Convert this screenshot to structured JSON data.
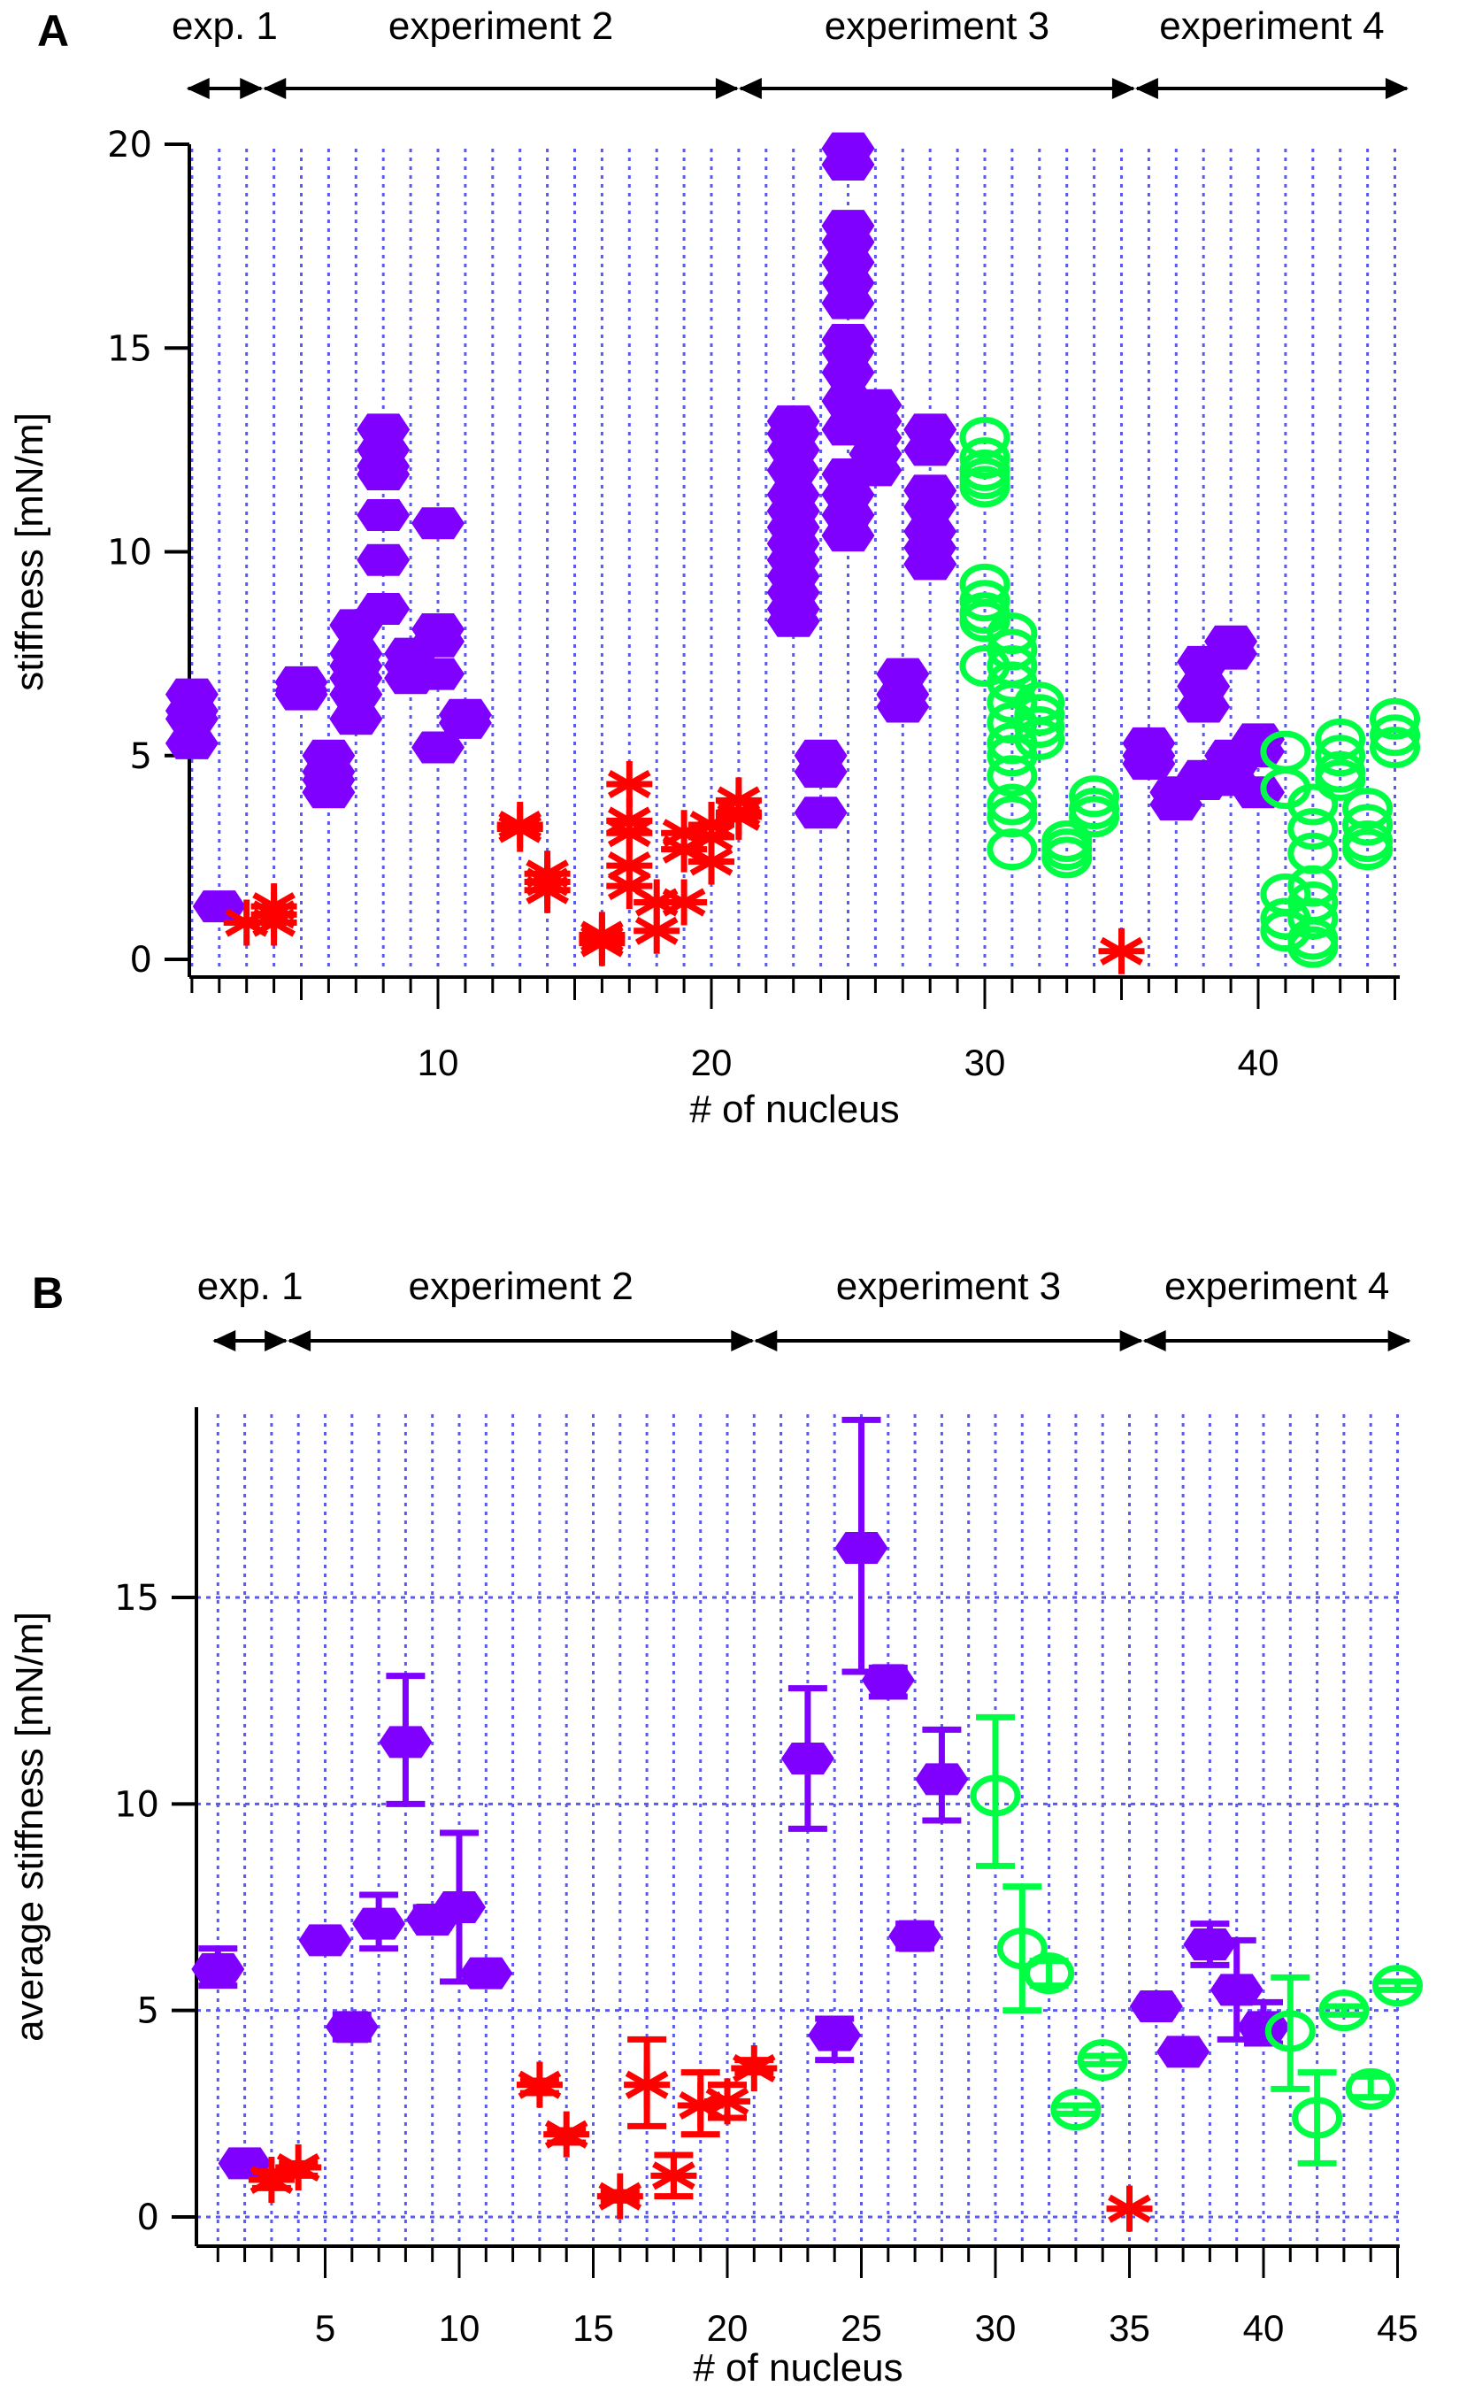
{
  "figure": {
    "panels": [
      "A",
      "B"
    ]
  },
  "colors": {
    "group_purple": "#7f00ff",
    "group_red": "#ff0000",
    "group_green": "#00ff44",
    "grid": "#5a5aee",
    "axis": "#000000"
  },
  "experiments": [
    {
      "label": "exp. 1",
      "from": 0.8,
      "to": 3.6
    },
    {
      "label": "experiment 2",
      "from": 3.6,
      "to": 21.0
    },
    {
      "label": "experiment 3",
      "from": 21.0,
      "to": 35.5
    },
    {
      "label": "experiment 4",
      "from": 35.5,
      "to": 45.5
    }
  ],
  "chart_data": [
    {
      "panel": "A",
      "type": "scatter",
      "title": "",
      "xlabel": "# of nucleus",
      "ylabel": "stiffness [mN/m]",
      "xlim": [
        0,
        45
      ],
      "ylim": [
        0,
        20
      ],
      "xticks": [
        10,
        20,
        30,
        40
      ],
      "yticks": [
        0,
        5,
        10,
        15,
        20
      ],
      "grid": "vertical dotted at each integer",
      "series": [
        {
          "name": "purple diamonds",
          "marker": "diamond",
          "color": "#7f00ff",
          "points": [
            [
              1,
              6.5
            ],
            [
              1,
              6.1
            ],
            [
              1,
              5.9
            ],
            [
              1,
              5.3
            ],
            [
              2,
              1.3
            ],
            [
              5,
              6.8
            ],
            [
              5,
              6.6
            ],
            [
              5,
              6.5
            ],
            [
              6,
              5.0
            ],
            [
              6,
              4.6
            ],
            [
              6,
              4.4
            ],
            [
              6,
              4.1
            ],
            [
              7,
              8.2
            ],
            [
              7,
              7.5
            ],
            [
              7,
              7.2
            ],
            [
              7,
              6.9
            ],
            [
              7,
              6.5
            ],
            [
              7,
              5.9
            ],
            [
              8,
              13.0
            ],
            [
              8,
              12.5
            ],
            [
              8,
              12.1
            ],
            [
              8,
              11.9
            ],
            [
              8,
              10.9
            ],
            [
              8,
              9.8
            ],
            [
              8,
              8.6
            ],
            [
              9,
              7.5
            ],
            [
              9,
              7.2
            ],
            [
              9,
              6.9
            ],
            [
              10,
              10.7
            ],
            [
              10,
              8.1
            ],
            [
              10,
              7.8
            ],
            [
              10,
              7.0
            ],
            [
              10,
              5.2
            ],
            [
              11,
              6.0
            ],
            [
              11,
              5.8
            ],
            [
              23,
              13.2
            ],
            [
              23,
              12.9
            ],
            [
              23,
              12.5
            ],
            [
              23,
              12.0
            ],
            [
              23,
              11.4
            ],
            [
              23,
              11.0
            ],
            [
              23,
              10.6
            ],
            [
              23,
              10.2
            ],
            [
              23,
              9.8
            ],
            [
              23,
              9.4
            ],
            [
              23,
              9.0
            ],
            [
              23,
              8.6
            ],
            [
              23,
              8.3
            ],
            [
              24,
              5.0
            ],
            [
              24,
              4.6
            ],
            [
              24,
              3.6
            ],
            [
              25,
              19.9
            ],
            [
              25,
              19.5
            ],
            [
              25,
              18.0
            ],
            [
              25,
              17.6
            ],
            [
              25,
              17.1
            ],
            [
              25,
              16.6
            ],
            [
              25,
              16.1
            ],
            [
              25,
              15.2
            ],
            [
              25,
              14.9
            ],
            [
              25,
              14.4
            ],
            [
              25,
              13.7
            ],
            [
              25,
              13.0
            ],
            [
              25,
              11.9
            ],
            [
              25,
              11.4
            ],
            [
              25,
              10.9
            ],
            [
              25,
              10.4
            ],
            [
              26,
              13.6
            ],
            [
              26,
              13.2
            ],
            [
              26,
              12.8
            ],
            [
              26,
              12.4
            ],
            [
              26,
              12.0
            ],
            [
              27,
              7.0
            ],
            [
              27,
              6.5
            ],
            [
              27,
              6.2
            ],
            [
              28,
              13.0
            ],
            [
              28,
              12.5
            ],
            [
              28,
              11.5
            ],
            [
              28,
              11.1
            ],
            [
              28,
              10.5
            ],
            [
              28,
              10.1
            ],
            [
              28,
              9.7
            ],
            [
              36,
              5.3
            ],
            [
              36,
              5.0
            ],
            [
              36,
              4.8
            ],
            [
              37,
              4.1
            ],
            [
              37,
              3.8
            ],
            [
              38,
              7.3
            ],
            [
              38,
              6.7
            ],
            [
              38,
              6.2
            ],
            [
              38,
              4.5
            ],
            [
              38,
              4.3
            ],
            [
              39,
              7.8
            ],
            [
              39,
              7.5
            ],
            [
              39,
              5.0
            ],
            [
              39,
              4.7
            ],
            [
              39,
              4.4
            ],
            [
              40,
              5.4
            ],
            [
              40,
              5.1
            ],
            [
              40,
              4.1
            ]
          ]
        },
        {
          "name": "red asterisks",
          "marker": "asterisk",
          "color": "#ff0000",
          "points": [
            [
              3,
              0.9
            ],
            [
              4,
              1.3
            ],
            [
              4,
              1.1
            ],
            [
              4,
              0.9
            ],
            [
              13,
              3.3
            ],
            [
              13,
              3.2
            ],
            [
              14,
              2.1
            ],
            [
              14,
              1.9
            ],
            [
              14,
              1.7
            ],
            [
              16,
              0.6
            ],
            [
              16,
              0.5
            ],
            [
              16,
              0.4
            ],
            [
              17,
              4.3
            ],
            [
              17,
              3.4
            ],
            [
              17,
              3.1
            ],
            [
              17,
              2.3
            ],
            [
              17,
              1.8
            ],
            [
              18,
              1.4
            ],
            [
              18,
              0.7
            ],
            [
              19,
              3.1
            ],
            [
              19,
              2.7
            ],
            [
              19,
              1.4
            ],
            [
              20,
              3.3
            ],
            [
              20,
              3.0
            ],
            [
              20,
              2.4
            ],
            [
              21,
              3.9
            ],
            [
              21,
              3.6
            ],
            [
              21,
              3.5
            ],
            [
              35,
              0.2
            ]
          ]
        },
        {
          "name": "green circles",
          "marker": "circle",
          "color": "#00ff44",
          "points": [
            [
              30,
              12.8
            ],
            [
              30,
              12.3
            ],
            [
              30,
              12.0
            ],
            [
              30,
              11.8
            ],
            [
              30,
              11.6
            ],
            [
              30,
              9.2
            ],
            [
              30,
              8.8
            ],
            [
              30,
              8.5
            ],
            [
              30,
              8.3
            ],
            [
              30,
              7.2
            ],
            [
              31,
              8.0
            ],
            [
              31,
              7.6
            ],
            [
              31,
              7.2
            ],
            [
              31,
              6.8
            ],
            [
              31,
              6.3
            ],
            [
              31,
              5.8
            ],
            [
              31,
              5.3
            ],
            [
              31,
              5.0
            ],
            [
              31,
              4.5
            ],
            [
              31,
              3.8
            ],
            [
              31,
              3.5
            ],
            [
              31,
              2.7
            ],
            [
              32,
              6.3
            ],
            [
              32,
              6.0
            ],
            [
              32,
              5.7
            ],
            [
              32,
              5.4
            ],
            [
              33,
              2.9
            ],
            [
              33,
              2.7
            ],
            [
              33,
              2.5
            ],
            [
              34,
              4.0
            ],
            [
              34,
              3.7
            ],
            [
              34,
              3.5
            ],
            [
              41,
              5.1
            ],
            [
              41,
              4.2
            ],
            [
              41,
              1.6
            ],
            [
              41,
              1.0
            ],
            [
              41,
              0.7
            ],
            [
              42,
              3.8
            ],
            [
              42,
              3.2
            ],
            [
              42,
              2.6
            ],
            [
              42,
              1.8
            ],
            [
              42,
              1.4
            ],
            [
              42,
              1.0
            ],
            [
              42,
              0.5
            ],
            [
              42,
              0.3
            ],
            [
              43,
              5.4
            ],
            [
              43,
              5.0
            ],
            [
              43,
              4.6
            ],
            [
              43,
              4.4
            ],
            [
              44,
              3.7
            ],
            [
              44,
              3.3
            ],
            [
              44,
              2.9
            ],
            [
              44,
              2.7
            ],
            [
              45,
              5.9
            ],
            [
              45,
              5.5
            ],
            [
              45,
              5.2
            ]
          ]
        }
      ]
    },
    {
      "panel": "B",
      "type": "scatter",
      "title": "",
      "xlabel": "# of nucleus",
      "ylabel": "average stiffness [mN/m]",
      "xlim": [
        0,
        45
      ],
      "ylim": [
        -0.6,
        19.5
      ],
      "xticks": [
        5,
        10,
        15,
        20,
        25,
        30,
        35,
        40,
        45
      ],
      "yticks": [
        0,
        5,
        10,
        15
      ],
      "grid": "dotted at each integer x and each 5 in y",
      "series": [
        {
          "name": "purple diamonds",
          "marker": "diamond",
          "color": "#7f00ff",
          "points": [
            {
              "x": 1,
              "y": 6.0,
              "lo": 5.6,
              "hi": 6.5
            },
            {
              "x": 2,
              "y": 1.3,
              "lo": 1.3,
              "hi": 1.3
            },
            {
              "x": 5,
              "y": 6.7,
              "lo": 6.5,
              "hi": 6.9
            },
            {
              "x": 6,
              "y": 4.6,
              "lo": 4.3,
              "hi": 4.9
            },
            {
              "x": 7,
              "y": 7.1,
              "lo": 6.5,
              "hi": 7.8
            },
            {
              "x": 8,
              "y": 11.5,
              "lo": 10.0,
              "hi": 13.1
            },
            {
              "x": 9,
              "y": 7.2,
              "lo": 7.0,
              "hi": 7.5
            },
            {
              "x": 10,
              "y": 7.5,
              "lo": 5.7,
              "hi": 9.3
            },
            {
              "x": 11,
              "y": 5.9,
              "lo": 5.8,
              "hi": 6.0
            },
            {
              "x": 23,
              "y": 11.1,
              "lo": 9.4,
              "hi": 12.8
            },
            {
              "x": 24,
              "y": 4.4,
              "lo": 3.8,
              "hi": 4.8
            },
            {
              "x": 25,
              "y": 16.2,
              "lo": 13.2,
              "hi": 19.3
            },
            {
              "x": 26,
              "y": 13.0,
              "lo": 12.6,
              "hi": 13.3
            },
            {
              "x": 27,
              "y": 6.8,
              "lo": 6.5,
              "hi": 7.1
            },
            {
              "x": 28,
              "y": 10.6,
              "lo": 9.6,
              "hi": 11.8
            },
            {
              "x": 36,
              "y": 5.1,
              "lo": 4.9,
              "hi": 5.3
            },
            {
              "x": 37,
              "y": 4.0,
              "lo": 3.9,
              "hi": 4.0
            },
            {
              "x": 38,
              "y": 6.6,
              "lo": 6.1,
              "hi": 7.1
            },
            {
              "x": 39,
              "y": 5.5,
              "lo": 4.3,
              "hi": 6.7
            },
            {
              "x": 40,
              "y": 4.6,
              "lo": 4.2,
              "hi": 5.2
            }
          ]
        },
        {
          "name": "red asterisks",
          "marker": "asterisk",
          "color": "#ff0000",
          "points": [
            {
              "x": 3,
              "y": 0.9,
              "lo": 0.7,
              "hi": 1.1
            },
            {
              "x": 4,
              "y": 1.2,
              "lo": 1.0,
              "hi": 1.3
            },
            {
              "x": 13,
              "y": 3.2,
              "lo": 3.0,
              "hi": 3.3
            },
            {
              "x": 14,
              "y": 2.0,
              "lo": 1.8,
              "hi": 2.1
            },
            {
              "x": 16,
              "y": 0.5,
              "lo": 0.4,
              "hi": 0.6
            },
            {
              "x": 17,
              "y": 3.2,
              "lo": 2.2,
              "hi": 4.3
            },
            {
              "x": 18,
              "y": 1.0,
              "lo": 0.5,
              "hi": 1.5
            },
            {
              "x": 19,
              "y": 2.7,
              "lo": 2.0,
              "hi": 3.5
            },
            {
              "x": 20,
              "y": 2.8,
              "lo": 2.4,
              "hi": 3.2
            },
            {
              "x": 21,
              "y": 3.6,
              "lo": 3.5,
              "hi": 3.8
            },
            {
              "x": 35,
              "y": 0.2,
              "lo": 0.2,
              "hi": 0.2
            }
          ]
        },
        {
          "name": "green circles",
          "marker": "circle",
          "color": "#00ff44",
          "points": [
            {
              "x": 30,
              "y": 10.2,
              "lo": 8.5,
              "hi": 12.1
            },
            {
              "x": 31,
              "y": 6.5,
              "lo": 5.0,
              "hi": 8.0
            },
            {
              "x": 32,
              "y": 5.9,
              "lo": 5.6,
              "hi": 6.2
            },
            {
              "x": 33,
              "y": 2.6,
              "lo": 2.5,
              "hi": 2.7
            },
            {
              "x": 34,
              "y": 3.8,
              "lo": 3.7,
              "hi": 3.9
            },
            {
              "x": 41,
              "y": 4.5,
              "lo": 3.1,
              "hi": 5.8
            },
            {
              "x": 42,
              "y": 2.4,
              "lo": 1.3,
              "hi": 3.5
            },
            {
              "x": 43,
              "y": 5.0,
              "lo": 4.9,
              "hi": 5.1
            },
            {
              "x": 44,
              "y": 3.1,
              "lo": 2.9,
              "hi": 3.4
            },
            {
              "x": 45,
              "y": 5.6,
              "lo": 5.5,
              "hi": 5.7
            }
          ]
        }
      ]
    }
  ]
}
